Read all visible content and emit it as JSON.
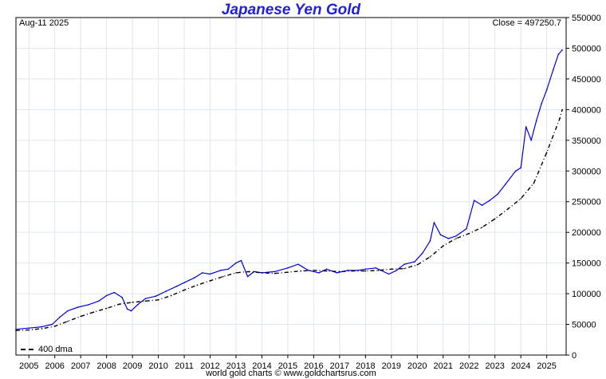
{
  "chart_data": {
    "type": "line",
    "title": "Japanese Yen Gold",
    "corner_label": "Aug-11  2025",
    "close_label": "Close = 497250.7",
    "credit": "world gold charts © www.goldchartsrus.com",
    "xlabel": "",
    "ylabel": "",
    "ylim": [
      0,
      550000
    ],
    "xlim": [
      2004.5,
      2025.75
    ],
    "y_ticks": [
      0,
      50000,
      100000,
      150000,
      200000,
      250000,
      300000,
      350000,
      400000,
      450000,
      500000,
      550000
    ],
    "y_tick_labels": [
      "0",
      "50000",
      "100000",
      "150000",
      "200000",
      "250000",
      "300000",
      "350000",
      "400000",
      "450000",
      "500000",
      "550000"
    ],
    "x_ticks": [
      2005,
      2006,
      2007,
      2008,
      2009,
      2010,
      2011,
      2012,
      2013,
      2014,
      2015,
      2016,
      2017,
      2018,
      2019,
      2020,
      2021,
      2022,
      2023,
      2024,
      2025
    ],
    "x_tick_labels": [
      "2005",
      "2006",
      "2007",
      "2008",
      "2009",
      "2010",
      "2011",
      "2012",
      "2013",
      "2014",
      "2015",
      "2016",
      "2017",
      "2018",
      "2019",
      "2020",
      "2021",
      "2022",
      "2023",
      "2024",
      "2025"
    ],
    "grid": true,
    "legend_position": "bottom-left",
    "series": [
      {
        "name": "",
        "style": "solid",
        "color": "#0000dd",
        "x": [
          2004.5,
          2005.0,
          2005.5,
          2005.9,
          2006.2,
          2006.5,
          2006.9,
          2007.3,
          2007.7,
          2008.0,
          2008.3,
          2008.6,
          2008.8,
          2008.95,
          2009.2,
          2009.5,
          2009.9,
          2010.3,
          2010.7,
          2011.0,
          2011.4,
          2011.7,
          2012.0,
          2012.4,
          2012.7,
          2013.0,
          2013.2,
          2013.45,
          2013.7,
          2014.0,
          2014.5,
          2015.0,
          2015.4,
          2015.8,
          2016.2,
          2016.5,
          2016.9,
          2017.3,
          2017.7,
          2018.0,
          2018.4,
          2018.9,
          2019.2,
          2019.5,
          2019.9,
          2020.2,
          2020.5,
          2020.65,
          2020.9,
          2021.2,
          2021.5,
          2021.9,
          2022.2,
          2022.5,
          2022.8,
          2023.1,
          2023.4,
          2023.8,
          2024.0,
          2024.2,
          2024.4,
          2024.6,
          2024.8,
          2025.0,
          2025.25,
          2025.45,
          2025.6
        ],
        "values": [
          42000,
          44000,
          46000,
          50000,
          62000,
          72000,
          78000,
          82000,
          88000,
          97000,
          102000,
          94000,
          75000,
          72000,
          82000,
          92000,
          96000,
          104000,
          112000,
          118000,
          126000,
          134000,
          132000,
          138000,
          140000,
          150000,
          154000,
          128000,
          136000,
          134000,
          136000,
          142000,
          148000,
          138000,
          134000,
          140000,
          134000,
          138000,
          138000,
          140000,
          142000,
          132000,
          138000,
          148000,
          152000,
          166000,
          186000,
          216000,
          196000,
          190000,
          194000,
          206000,
          252000,
          244000,
          252000,
          262000,
          278000,
          300000,
          305000,
          372000,
          350000,
          382000,
          410000,
          432000,
          465000,
          490000,
          497250.7
        ]
      },
      {
        "name": "400 dma",
        "style": "dashed",
        "color": "#000000",
        "x": [
          2004.5,
          2005.0,
          2005.5,
          2006.0,
          2006.5,
          2007.0,
          2007.5,
          2008.0,
          2008.5,
          2009.0,
          2009.5,
          2010.0,
          2010.5,
          2011.0,
          2011.5,
          2012.0,
          2012.5,
          2013.0,
          2013.5,
          2014.0,
          2014.5,
          2015.0,
          2015.5,
          2016.0,
          2016.5,
          2017.0,
          2017.5,
          2018.0,
          2018.5,
          2019.0,
          2019.5,
          2020.0,
          2020.5,
          2021.0,
          2021.5,
          2022.0,
          2022.5,
          2023.0,
          2023.5,
          2024.0,
          2024.5,
          2025.0,
          2025.5,
          2025.6
        ],
        "values": [
          40000,
          41000,
          43000,
          47000,
          55000,
          63000,
          70000,
          76000,
          83000,
          86000,
          88000,
          90000,
          97000,
          106000,
          114000,
          121000,
          128000,
          134000,
          136000,
          134000,
          133000,
          135000,
          137000,
          138000,
          137000,
          136000,
          137000,
          137000,
          138000,
          140000,
          141000,
          147000,
          160000,
          178000,
          190000,
          198000,
          208000,
          222000,
          238000,
          255000,
          280000,
          330000,
          385000,
          400000
        ]
      }
    ]
  }
}
